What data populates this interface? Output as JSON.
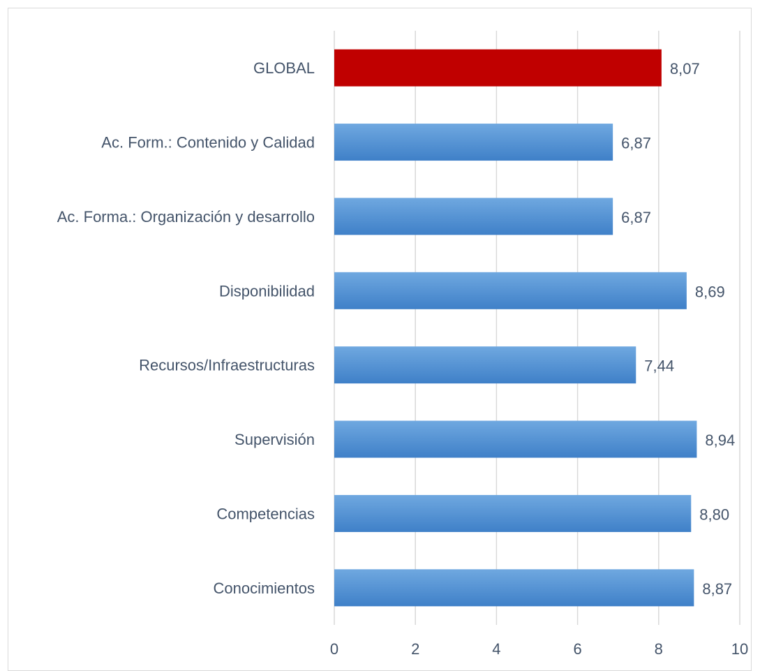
{
  "chart_data": {
    "type": "bar",
    "orientation": "horizontal",
    "title": "",
    "xlabel": "",
    "ylabel": "",
    "categories": [
      "GLOBAL",
      "Ac. Form.: Contenido y Calidad",
      "Ac. Forma.: Organización y desarrollo",
      "Disponibilidad",
      "Recursos/Infraestructuras",
      "Supervisión",
      "Competencias",
      "Conocimientos"
    ],
    "values": [
      8.07,
      6.87,
      6.87,
      8.69,
      7.44,
      8.94,
      8.8,
      8.87
    ],
    "value_labels": [
      "8,07",
      "6,87",
      "6,87",
      "8,69",
      "7,44",
      "8,94",
      "8,80",
      "8,87"
    ],
    "xlim": [
      0,
      10
    ],
    "x_ticks": [
      0,
      2,
      4,
      6,
      8,
      10
    ],
    "x_tick_labels": [
      "0",
      "2",
      "4",
      "6",
      "8",
      "10"
    ],
    "grid": "vertical",
    "legend": "none",
    "colors": {
      "highlight_bar": "#c00000",
      "bar_light": "#6fa8e0",
      "bar_dark": "#3f80c8",
      "text": "#44546a",
      "grid": "#d9d9d9"
    },
    "highlighted_category": "GLOBAL"
  }
}
